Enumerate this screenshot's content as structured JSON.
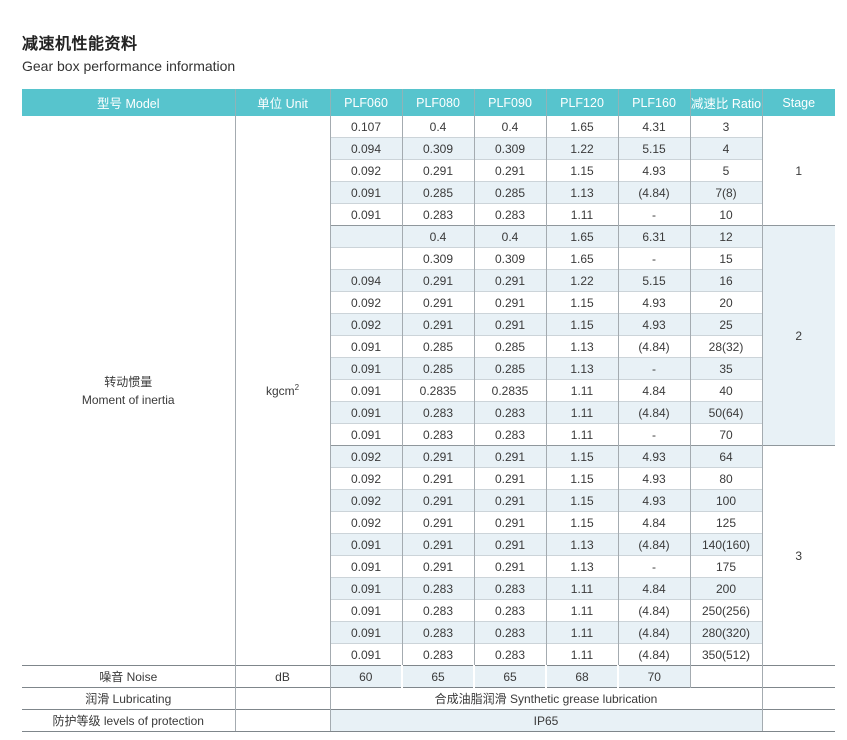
{
  "page": {
    "title_zh": "减速机性能资料",
    "title_en": "Gear box performance information"
  },
  "theme": {
    "header_bg": "#57c4cd",
    "header_text": "#ffffff",
    "row_alt_bg": "#e8f1f6",
    "grid_vertical": "#a4abb0",
    "grid_horizontal": "#ccd4d9",
    "section_line": "#7f868b",
    "body_text": "#3a3a3a"
  },
  "table": {
    "headers": [
      "型号 Model",
      "单位 Unit",
      "PLF060",
      "PLF080",
      "PLF090",
      "PLF120",
      "PLF160",
      "减速比 Ratio",
      "Stage"
    ],
    "row_label": {
      "zh": "转动惯量",
      "en": "Moment of inertia"
    },
    "unit": {
      "base": "kgcm",
      "sup": "2"
    },
    "stages": [
      {
        "stage": "1",
        "rows": [
          [
            "0.107",
            "0.4",
            "0.4",
            "1.65",
            "4.31",
            "3"
          ],
          [
            "0.094",
            "0.309",
            "0.309",
            "1.22",
            "5.15",
            "4"
          ],
          [
            "0.092",
            "0.291",
            "0.291",
            "1.15",
            "4.93",
            "5"
          ],
          [
            "0.091",
            "0.285",
            "0.285",
            "1.13",
            "(4.84)",
            "7(8)"
          ],
          [
            "0.091",
            "0.283",
            "0.283",
            "1.11",
            "-",
            "10"
          ]
        ]
      },
      {
        "stage": "2",
        "rows": [
          [
            "",
            "0.4",
            "0.4",
            "1.65",
            "6.31",
            "12"
          ],
          [
            "",
            "0.309",
            "0.309",
            "1.65",
            "-",
            "15"
          ],
          [
            "0.094",
            "0.291",
            "0.291",
            "1.22",
            "5.15",
            "16"
          ],
          [
            "0.092",
            "0.291",
            "0.291",
            "1.15",
            "4.93",
            "20"
          ],
          [
            "0.092",
            "0.291",
            "0.291",
            "1.15",
            "4.93",
            "25"
          ],
          [
            "0.091",
            "0.285",
            "0.285",
            "1.13",
            "(4.84)",
            "28(32)"
          ],
          [
            "0.091",
            "0.285",
            "0.285",
            "1.13",
            "-",
            "35"
          ],
          [
            "0.091",
            "0.2835",
            "0.2835",
            "1.11",
            "4.84",
            "40"
          ],
          [
            "0.091",
            "0.283",
            "0.283",
            "1.11",
            "(4.84)",
            "50(64)"
          ],
          [
            "0.091",
            "0.283",
            "0.283",
            "1.11",
            "-",
            "70"
          ]
        ]
      },
      {
        "stage": "3",
        "rows": [
          [
            "0.092",
            "0.291",
            "0.291",
            "1.15",
            "4.93",
            "64"
          ],
          [
            "0.092",
            "0.291",
            "0.291",
            "1.15",
            "4.93",
            "80"
          ],
          [
            "0.092",
            "0.291",
            "0.291",
            "1.15",
            "4.93",
            "100"
          ],
          [
            "0.092",
            "0.291",
            "0.291",
            "1.15",
            "4.84",
            "125"
          ],
          [
            "0.091",
            "0.291",
            "0.291",
            "1.13",
            "(4.84)",
            "140(160)"
          ],
          [
            "0.091",
            "0.291",
            "0.291",
            "1.13",
            "-",
            "175"
          ],
          [
            "0.091",
            "0.283",
            "0.283",
            "1.11",
            "4.84",
            "200"
          ],
          [
            "0.091",
            "0.283",
            "0.283",
            "1.11",
            "(4.84)",
            "250(256)"
          ],
          [
            "0.091",
            "0.283",
            "0.283",
            "1.11",
            "(4.84)",
            "280(320)"
          ],
          [
            "0.091",
            "0.283",
            "0.283",
            "1.11",
            "(4.84)",
            "350(512)"
          ]
        ]
      }
    ],
    "noise": {
      "label": "噪音 Noise",
      "unit": "dB",
      "values": [
        "60",
        "65",
        "65",
        "68",
        "70"
      ]
    },
    "lubricating": {
      "label": "润滑 Lubricating",
      "value": "合成油脂润滑 Synthetic grease lubrication"
    },
    "protection": {
      "label": "防护等级 levels of protection",
      "value": "IP65"
    }
  }
}
